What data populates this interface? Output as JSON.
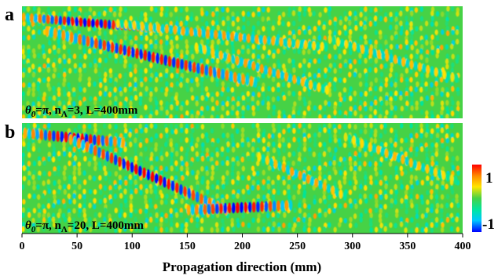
{
  "figure": {
    "panels": [
      {
        "letter": "a",
        "label_theta": "θ",
        "label_theta_sub": "0",
        "label_mid": "=π, n",
        "label_n_sub": "Λ",
        "label_tail": "=3, L=400mm",
        "theta0": "π",
        "n_lambda": 3,
        "L_mm": 400
      },
      {
        "letter": "b",
        "label_theta": "θ",
        "label_theta_sub": "0",
        "label_mid": "=π, n",
        "label_n_sub": "Λ",
        "label_tail": "=20, L=400mm",
        "theta0": "π",
        "n_lambda": 20,
        "L_mm": 400
      }
    ],
    "x_axis": {
      "title": "Propagation direction (mm)",
      "ticks": [
        "0",
        "50",
        "100",
        "150",
        "200",
        "250",
        "300",
        "350",
        "400"
      ],
      "range": [
        0,
        400
      ]
    },
    "colorbar": {
      "max_label": "1",
      "min_label": "-1",
      "range": [
        -1,
        1
      ],
      "colors": [
        "#0000ff",
        "#00c8ff",
        "#00e6a0",
        "#46d246",
        "#ffe600",
        "#ff8c00",
        "#ff0000"
      ]
    },
    "field_background_color": "#46d246"
  }
}
